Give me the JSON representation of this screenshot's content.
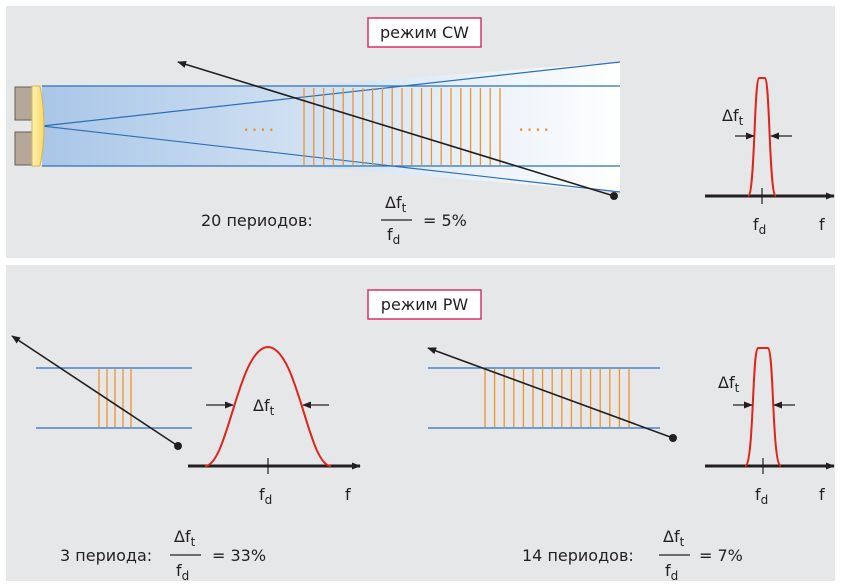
{
  "cw_panel": {
    "mode_label": "режим CW",
    "beam_dots_left": "....",
    "beam_dots_right": "....",
    "periods_label": "20 периодов:",
    "ratio": {
      "num_main": "Δf",
      "num_sub": "t",
      "den_main": "f",
      "den_sub": "d",
      "value": "= 5%"
    },
    "spectrum": {
      "bandwidth_main": "Δf",
      "bandwidth_sub": "t",
      "center_main": "f",
      "center_sub": "d",
      "axis_label": "f"
    }
  },
  "pw_panel": {
    "mode_label": "режим PW",
    "left": {
      "periods_label": "3 периода:",
      "ratio": {
        "num_main": "Δf",
        "num_sub": "t",
        "den_main": "f",
        "den_sub": "d",
        "value": "= 33%"
      },
      "spectrum": {
        "bandwidth_main": "Δf",
        "bandwidth_sub": "t",
        "center_main": "f",
        "center_sub": "d",
        "axis_label": "f"
      }
    },
    "right": {
      "periods_label": "14 периодов:",
      "ratio": {
        "num_main": "Δf",
        "num_sub": "t",
        "den_main": "f",
        "den_sub": "d",
        "value": "= 7%"
      },
      "spectrum": {
        "bandwidth_main": "Δf",
        "bandwidth_sub": "t",
        "center_main": "f",
        "center_sub": "d",
        "axis_label": "f"
      }
    }
  },
  "colors": {
    "panel_bg": "#e6e7e8",
    "beam_blue": "#2f6fb5",
    "pulse_orange": "#f0932b",
    "spectrum_red": "#e2231a",
    "label_border": "#d6336c",
    "arrow": "#231f20"
  }
}
